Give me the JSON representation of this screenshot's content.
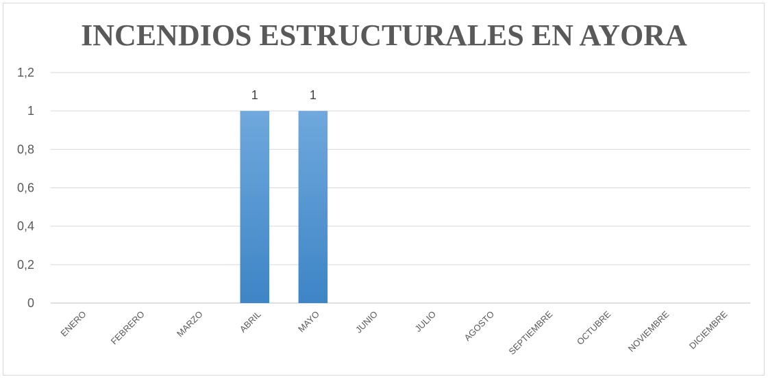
{
  "chart_data": {
    "type": "bar",
    "title": "INCENDIOS ESTRUCTURALES EN AYORA",
    "categories": [
      "ENERO",
      "FEBRERO",
      "MARZO",
      "ABRIL",
      "MAYO",
      "JUNIO",
      "JULIO",
      "AGOSTO",
      "SEPTIEMBRE",
      "OCTUBRE",
      "NOVIEMBRE",
      "DICIEMBRE"
    ],
    "values": [
      0,
      0,
      0,
      1,
      1,
      0,
      0,
      0,
      0,
      0,
      0,
      0
    ],
    "data_labels": [
      "",
      "",
      "",
      "1",
      "1",
      "",
      "",
      "",
      "",
      "",
      "",
      ""
    ],
    "y_ticks": [
      "0",
      "0,2",
      "0,4",
      "0,6",
      "0,8",
      "1",
      "1,2"
    ],
    "ylim": [
      0,
      1.2
    ],
    "grid": true,
    "legend": "none",
    "bar_color": "#5b9bd5"
  }
}
